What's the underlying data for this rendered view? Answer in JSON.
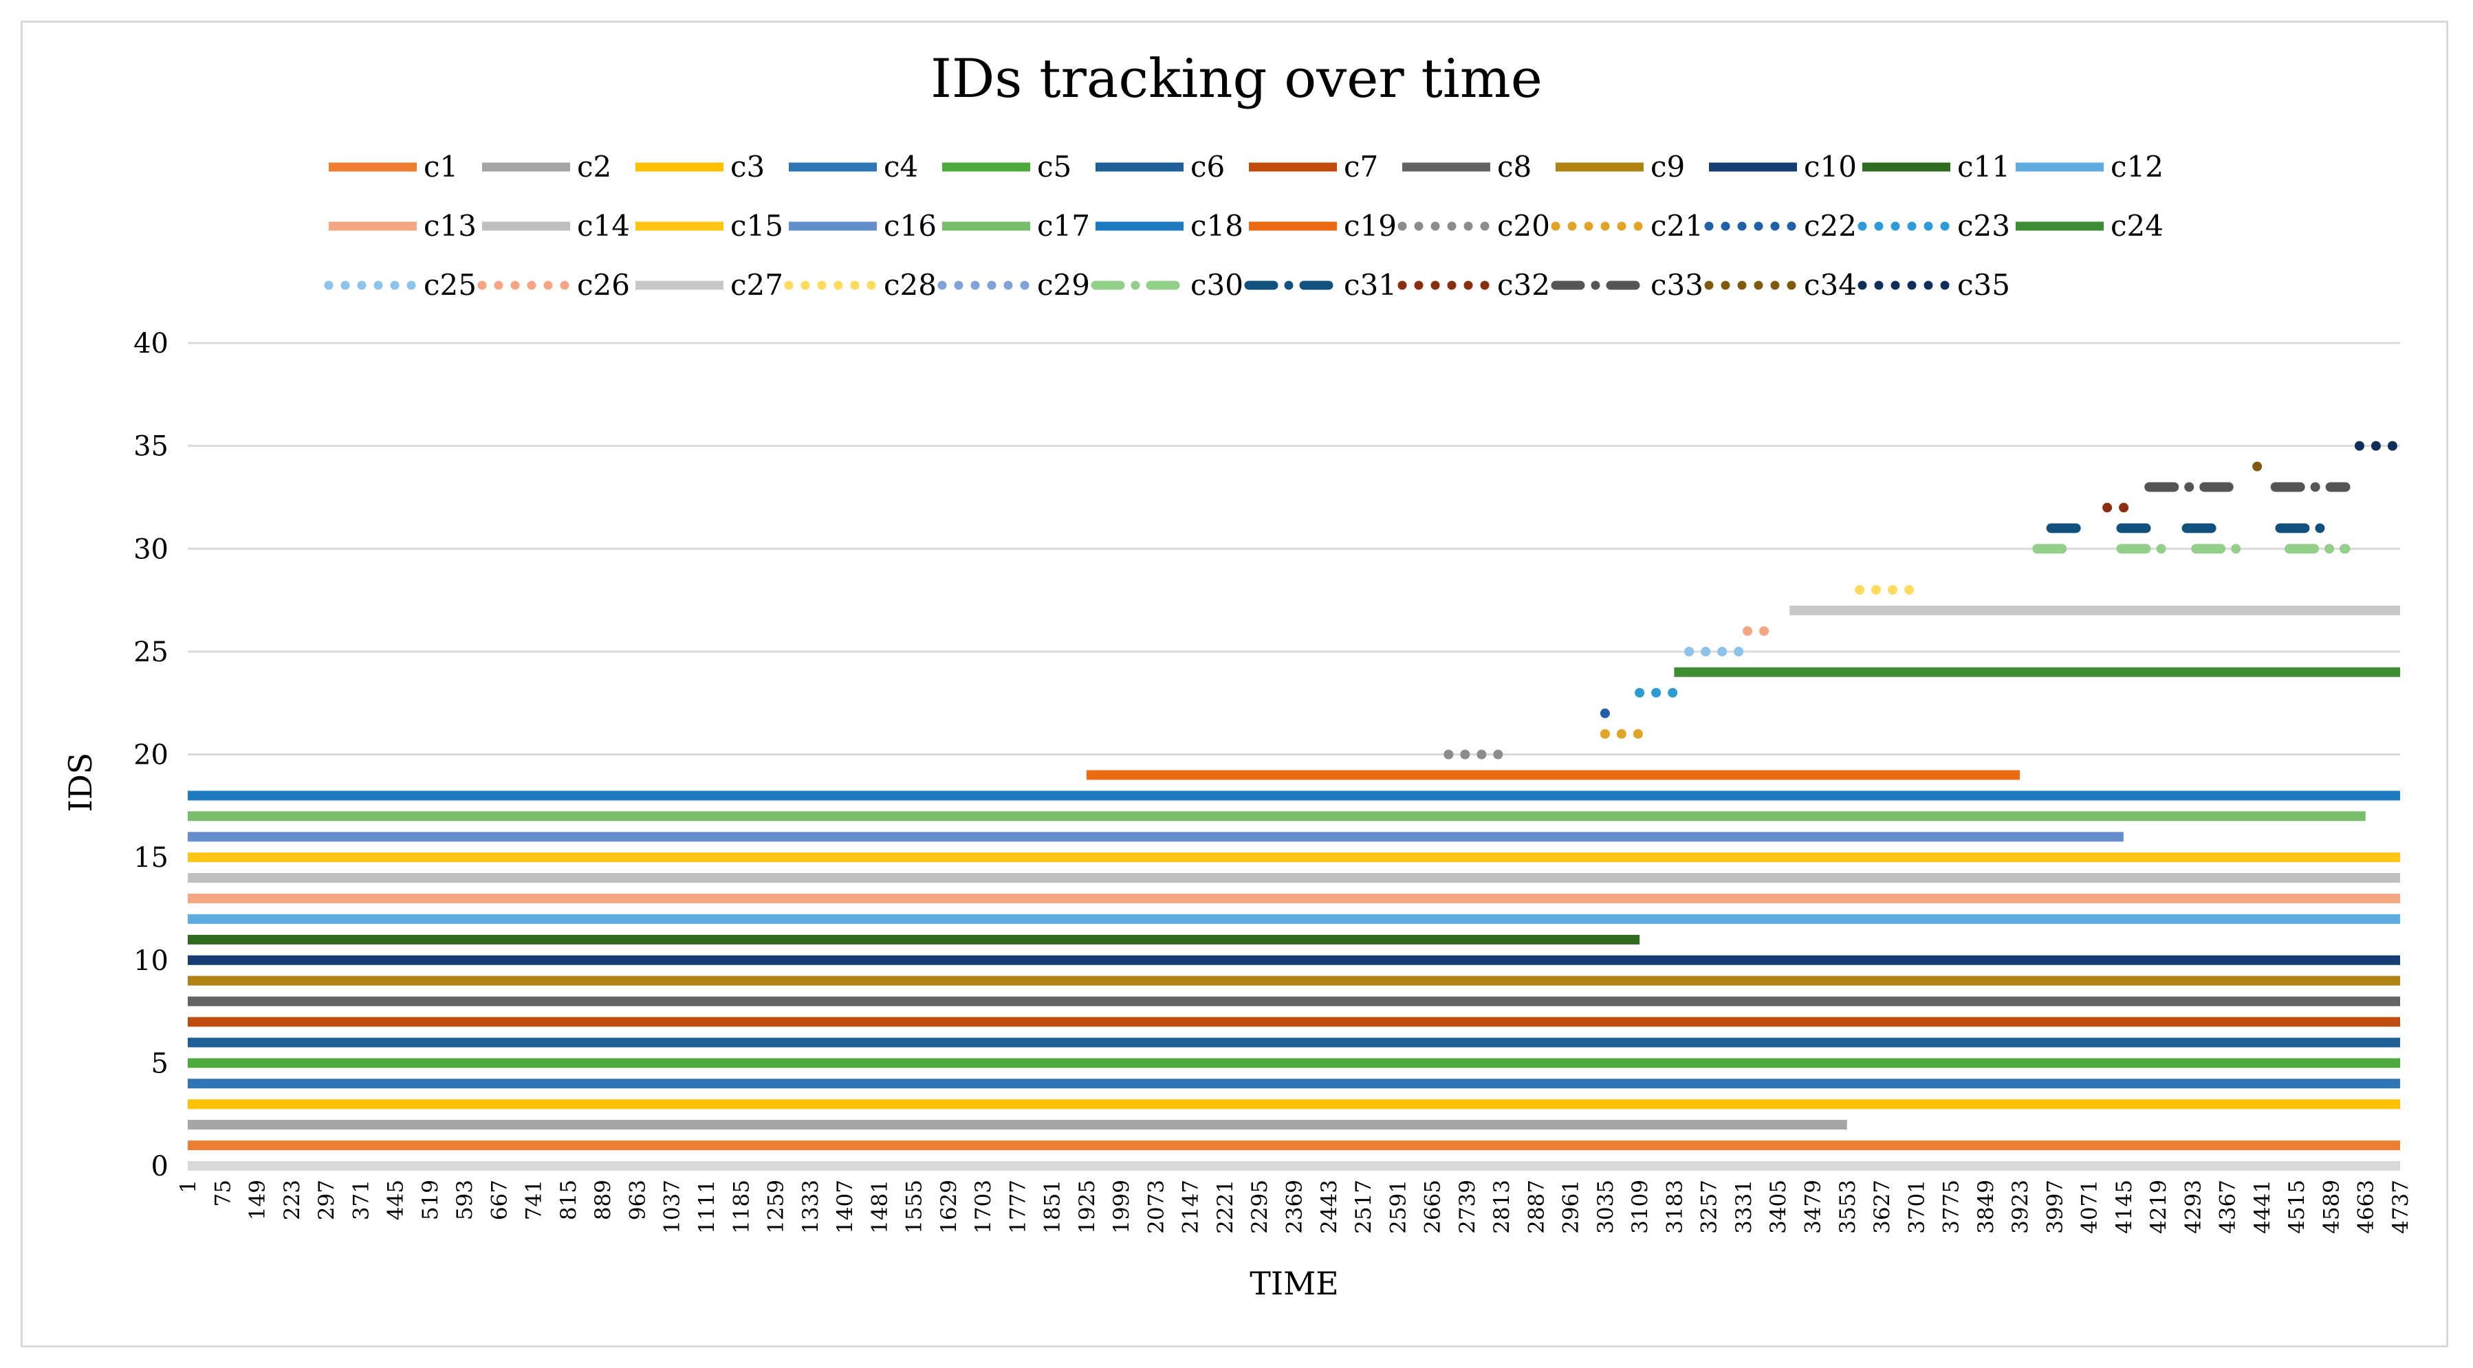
{
  "chart_data": {
    "type": "line",
    "title": "IDs tracking over time",
    "xlabel": "TIME",
    "ylabel": "IDS",
    "ylim": [
      0,
      40
    ],
    "yticks": [
      0,
      5,
      10,
      15,
      20,
      25,
      30,
      35,
      40
    ],
    "xlim": [
      1,
      4737
    ],
    "xtick_labels": [
      "1",
      "75",
      "149",
      "223",
      "297",
      "371",
      "445",
      "519",
      "593",
      "667",
      "741",
      "815",
      "889",
      "963",
      "1037",
      "1111",
      "1185",
      "1259",
      "1333",
      "1407",
      "1481",
      "1555",
      "1629",
      "1703",
      "1777",
      "1851",
      "1925",
      "1999",
      "2073",
      "2147",
      "2221",
      "2295",
      "2369",
      "2443",
      "2517",
      "2591",
      "2665",
      "2739",
      "2813",
      "2887",
      "2961",
      "3035",
      "3109",
      "3183",
      "3257",
      "3331",
      "3405",
      "3479",
      "3553",
      "3627",
      "3701",
      "3775",
      "3849",
      "3923",
      "3997",
      "4071",
      "4145",
      "4219",
      "4293",
      "4367",
      "4441",
      "4515",
      "4589",
      "4663",
      "4737"
    ],
    "grid": true,
    "legend_placement": "top",
    "series": [
      {
        "name": "c1",
        "id": 1,
        "color": "#ED7D31",
        "style": "solid",
        "segments": [
          [
            1,
            4737
          ]
        ]
      },
      {
        "name": "c2",
        "id": 2,
        "color": "#A5A5A5",
        "style": "solid",
        "segments": [
          [
            1,
            3553
          ]
        ]
      },
      {
        "name": "c3",
        "id": 3,
        "color": "#FFC000",
        "style": "solid",
        "segments": [
          [
            1,
            4737
          ]
        ]
      },
      {
        "name": "c4",
        "id": 4,
        "color": "#2E75B6",
        "style": "solid",
        "segments": [
          [
            1,
            4737
          ]
        ]
      },
      {
        "name": "c5",
        "id": 5,
        "color": "#4EAA3C",
        "style": "solid",
        "segments": [
          [
            1,
            4737
          ]
        ]
      },
      {
        "name": "c6",
        "id": 6,
        "color": "#1F5F99",
        "style": "solid",
        "segments": [
          [
            1,
            4737
          ]
        ]
      },
      {
        "name": "c7",
        "id": 7,
        "color": "#BF4B0F",
        "style": "solid",
        "segments": [
          [
            1,
            4737
          ]
        ]
      },
      {
        "name": "c8",
        "id": 8,
        "color": "#636363",
        "style": "solid",
        "segments": [
          [
            1,
            4737
          ]
        ]
      },
      {
        "name": "c9",
        "id": 9,
        "color": "#B08213",
        "style": "solid",
        "segments": [
          [
            1,
            4737
          ]
        ]
      },
      {
        "name": "c10",
        "id": 10,
        "color": "#163D73",
        "style": "solid",
        "segments": [
          [
            1,
            4737
          ]
        ]
      },
      {
        "name": "c11",
        "id": 11,
        "color": "#2E6B1F",
        "style": "solid",
        "segments": [
          [
            1,
            3109
          ]
        ]
      },
      {
        "name": "c12",
        "id": 12,
        "color": "#5DADE2",
        "style": "solid",
        "segments": [
          [
            1,
            4737
          ]
        ]
      },
      {
        "name": "c13",
        "id": 13,
        "color": "#F4A582",
        "style": "solid",
        "segments": [
          [
            1,
            4737
          ]
        ]
      },
      {
        "name": "c14",
        "id": 14,
        "color": "#BFBFBF",
        "style": "solid",
        "segments": [
          [
            1,
            4737
          ]
        ]
      },
      {
        "name": "c15",
        "id": 15,
        "color": "#FFC515",
        "style": "solid",
        "segments": [
          [
            1,
            4737
          ]
        ]
      },
      {
        "name": "c16",
        "id": 16,
        "color": "#6390CC",
        "style": "solid",
        "segments": [
          [
            1,
            4145
          ]
        ]
      },
      {
        "name": "c17",
        "id": 17,
        "color": "#78BE6A",
        "style": "solid",
        "segments": [
          [
            1,
            4663
          ]
        ]
      },
      {
        "name": "c18",
        "id": 18,
        "color": "#1C7BC0",
        "style": "solid",
        "segments": [
          [
            1,
            4737
          ]
        ]
      },
      {
        "name": "c19",
        "id": 19,
        "color": "#EB6A14",
        "style": "solid",
        "segments": [
          [
            1925,
            3923
          ]
        ]
      },
      {
        "name": "c20",
        "id": 20,
        "color": "#8C8C8C",
        "style": "dotted",
        "segments": [
          [
            2700,
            2820
          ]
        ]
      },
      {
        "name": "c21",
        "id": 21,
        "color": "#E0A526",
        "style": "dotted",
        "segments": [
          [
            3035,
            3140
          ]
        ]
      },
      {
        "name": "c22",
        "id": 22,
        "color": "#1F5FA8",
        "style": "dotted",
        "segments": [
          [
            3035,
            3035
          ]
        ]
      },
      {
        "name": "c23",
        "id": 23,
        "color": "#2E9AD6",
        "style": "dotted",
        "segments": [
          [
            3109,
            3190
          ]
        ]
      },
      {
        "name": "c24",
        "id": 24,
        "color": "#3E8C34",
        "style": "solid",
        "segments": [
          [
            3183,
            4737
          ]
        ]
      },
      {
        "name": "c25",
        "id": 25,
        "color": "#8DC3EB",
        "style": "dotted",
        "segments": [
          [
            3215,
            3330
          ]
        ]
      },
      {
        "name": "c26",
        "id": 26,
        "color": "#F4A582",
        "style": "dotted",
        "segments": [
          [
            3340,
            3380
          ]
        ]
      },
      {
        "name": "c27",
        "id": 27,
        "color": "#C8C8C8",
        "style": "solid",
        "segments": [
          [
            3430,
            4737
          ]
        ]
      },
      {
        "name": "c28",
        "id": 28,
        "color": "#FFDA5C",
        "style": "dotted",
        "segments": [
          [
            3580,
            3690
          ]
        ]
      },
      {
        "name": "c29",
        "id": 29,
        "color": "#7FA3D6",
        "style": "dotted",
        "segments": []
      },
      {
        "name": "c30",
        "id": 30,
        "color": "#92D08A",
        "style": "dashdot",
        "segments": [
          [
            3960,
            4030
          ],
          [
            4140,
            4250
          ],
          [
            4300,
            4400
          ],
          [
            4500,
            4620
          ]
        ]
      },
      {
        "name": "c31",
        "id": 31,
        "color": "#12507E",
        "style": "dashdot",
        "segments": [
          [
            3990,
            4060
          ],
          [
            4140,
            4220
          ],
          [
            4280,
            4360
          ],
          [
            4480,
            4580
          ]
        ]
      },
      {
        "name": "c32",
        "id": 32,
        "color": "#8B2E0B",
        "style": "dotted",
        "segments": [
          [
            4110,
            4180
          ]
        ]
      },
      {
        "name": "c33",
        "id": 33,
        "color": "#555555",
        "style": "dashdot",
        "segments": [
          [
            4200,
            4370
          ],
          [
            4470,
            4620
          ]
        ]
      },
      {
        "name": "c34",
        "id": 34,
        "color": "#805A10",
        "style": "dotted",
        "segments": [
          [
            4431,
            4431
          ]
        ]
      },
      {
        "name": "c35",
        "id": 35,
        "color": "#0F2F5A",
        "style": "dotted",
        "segments": [
          [
            4650,
            4737
          ]
        ]
      }
    ]
  }
}
